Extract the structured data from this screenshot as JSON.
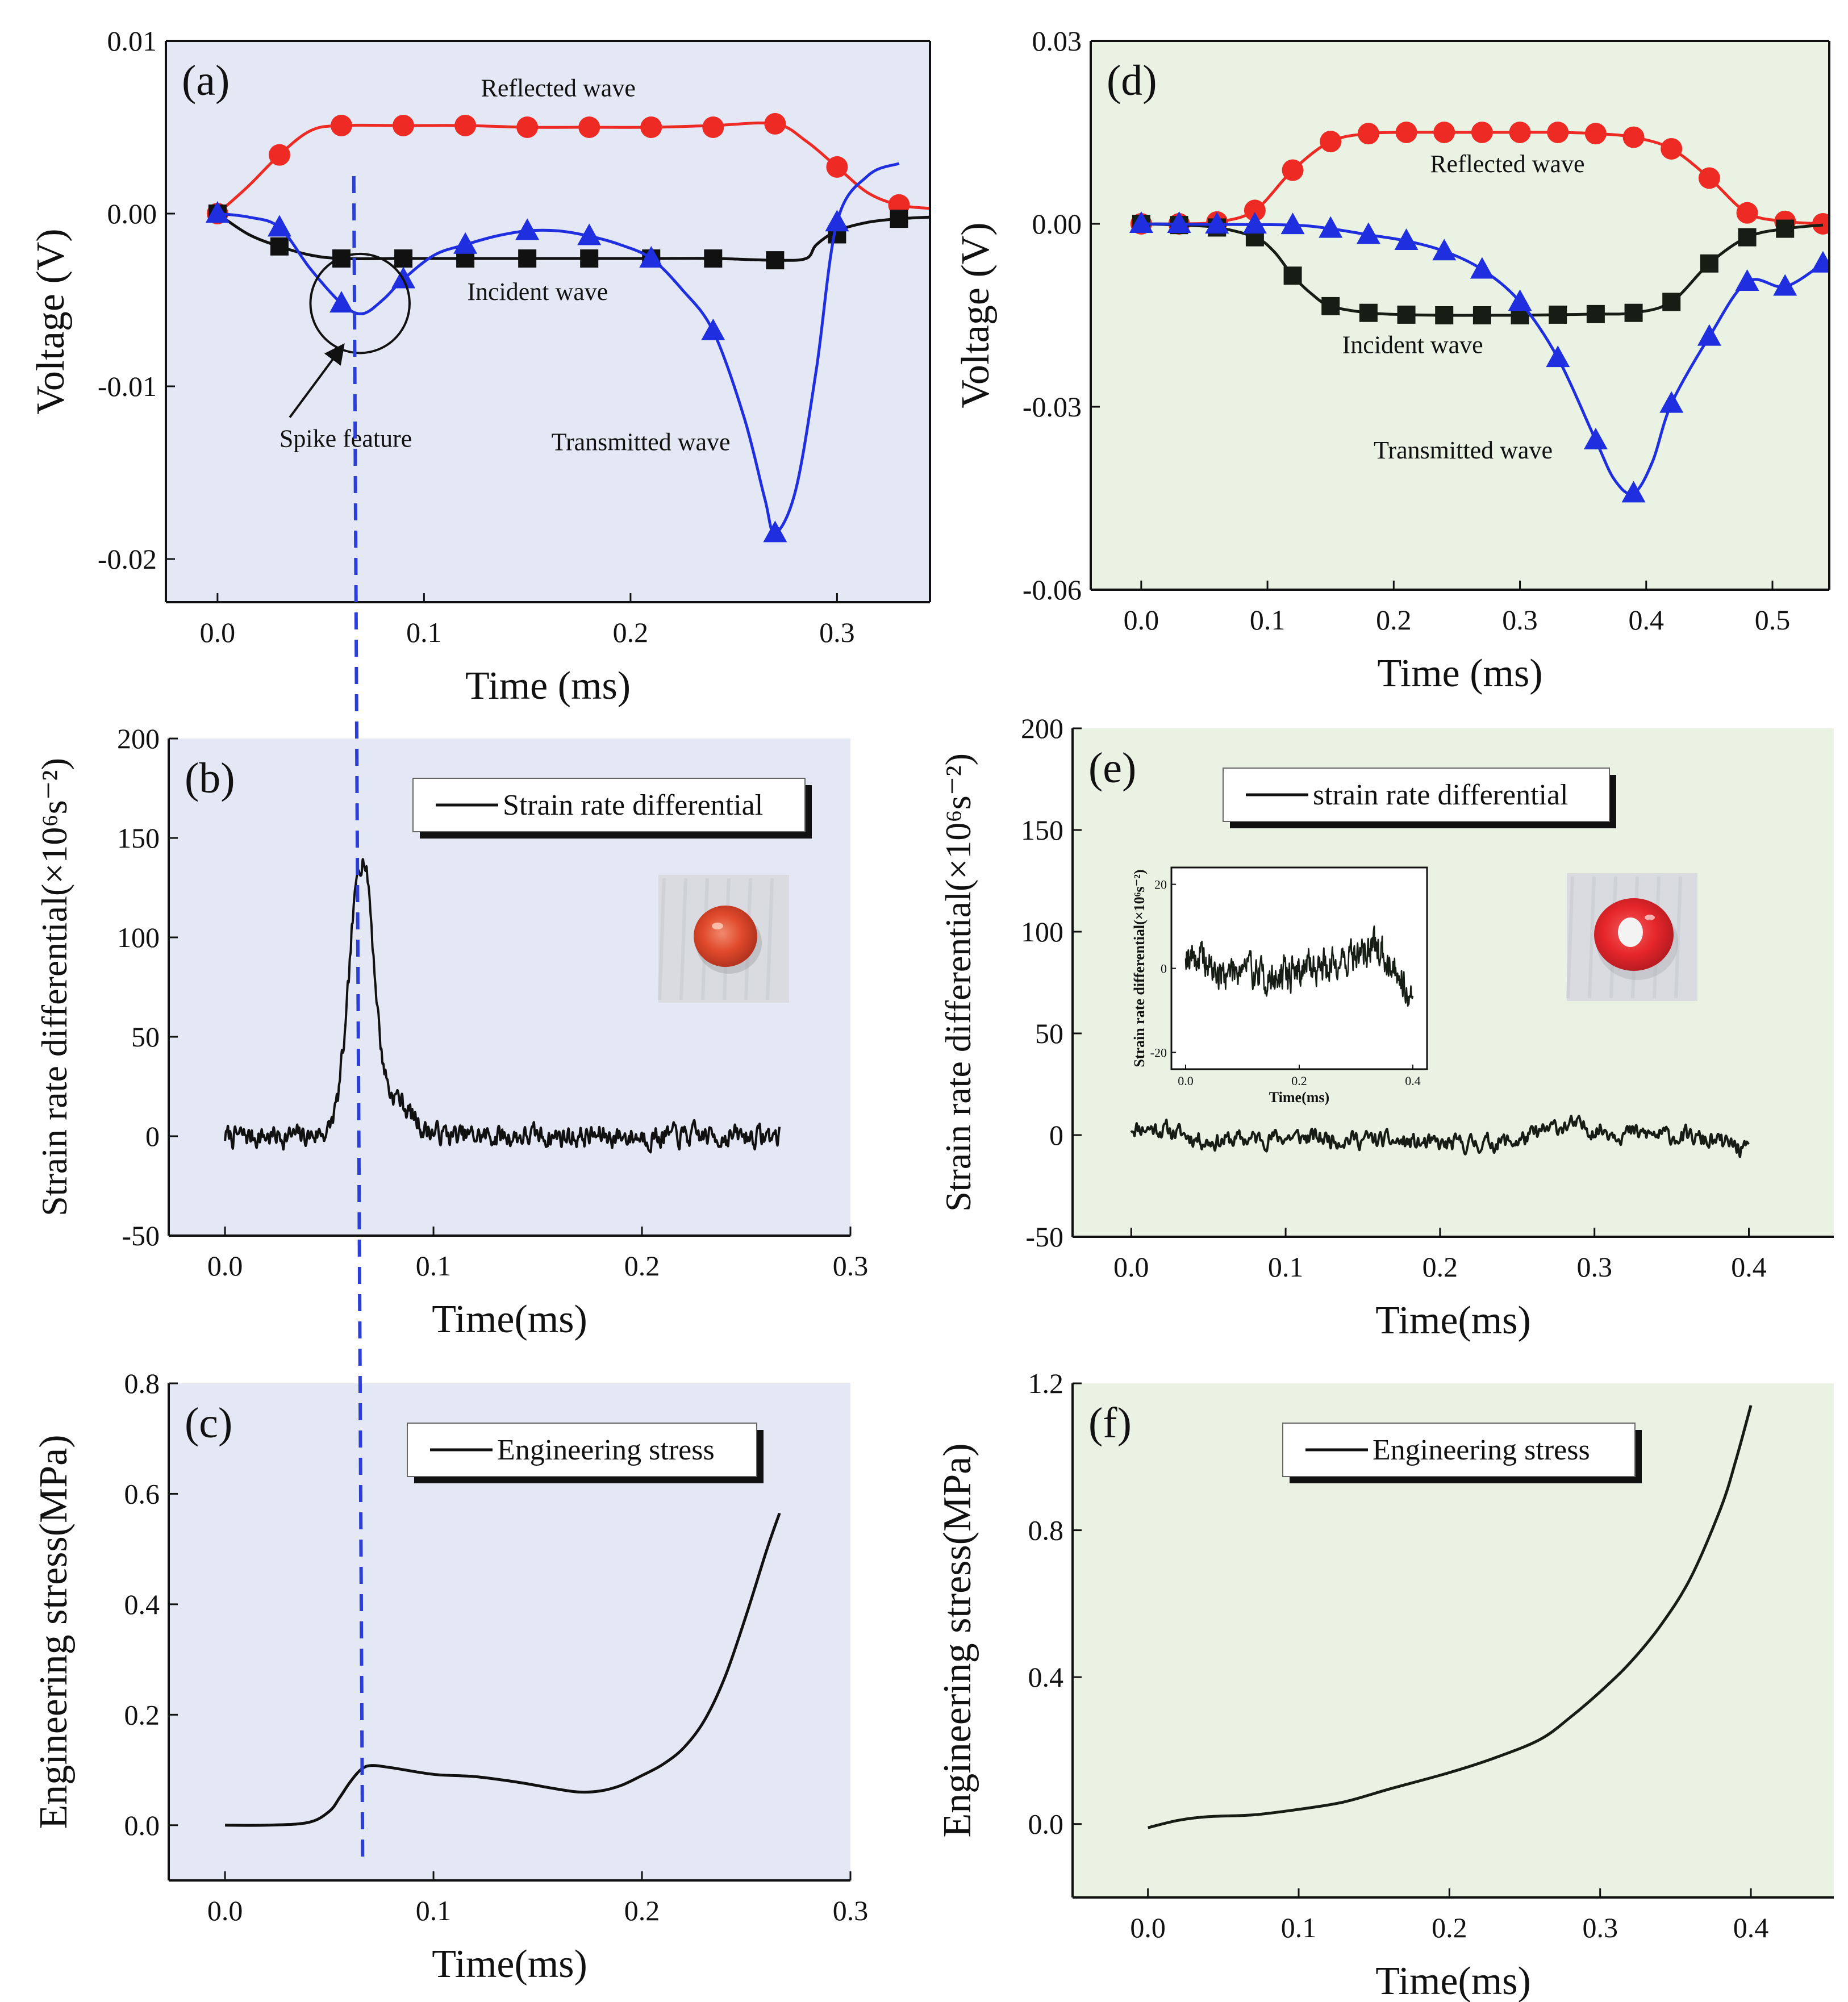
{
  "figure": {
    "guide_color": "#2b3fd6"
  },
  "chart_data": [
    {
      "id": "a",
      "type": "line",
      "panel_label": "(a)",
      "xlabel": "Time (ms)",
      "ylabel": "Voltage (V)",
      "xlim": [
        -0.025,
        0.345
      ],
      "ylim": [
        -0.0225,
        0.01
      ],
      "xticks": [
        0.0,
        0.1,
        0.2,
        0.3
      ],
      "xtick_labels": [
        "0.0",
        "0.1",
        "0.2",
        "0.3"
      ],
      "yticks": [
        0.01,
        0.0,
        -0.01,
        -0.02
      ],
      "ytick_labels": [
        "0.01",
        "0.00",
        "-0.01",
        "-0.02"
      ],
      "bg": "#e4e8f5",
      "guide_x": 0.066,
      "series": [
        {
          "name": "Reflected wave",
          "color": "#ee2a24",
          "marker": "circle",
          "x": [
            0.0,
            0.015,
            0.03,
            0.045,
            0.06,
            0.09,
            0.12,
            0.15,
            0.18,
            0.21,
            0.24,
            0.27,
            0.285,
            0.3,
            0.315,
            0.33,
            0.345
          ],
          "y": [
            0.0,
            0.0016,
            0.0034,
            0.0048,
            0.0051,
            0.0051,
            0.0051,
            0.005,
            0.005,
            0.005,
            0.0051,
            0.0052,
            0.0042,
            0.0027,
            0.0012,
            0.0005,
            0.0003
          ],
          "mx": [
            0.0,
            0.03,
            0.06,
            0.09,
            0.12,
            0.15,
            0.18,
            0.21,
            0.24,
            0.27,
            0.3,
            0.33
          ],
          "my": [
            0.0,
            0.0034,
            0.0051,
            0.0051,
            0.0051,
            0.005,
            0.005,
            0.005,
            0.005,
            0.0052,
            0.0027,
            0.0005
          ]
        },
        {
          "name": "Incident wave",
          "color": "#111111",
          "marker": "square",
          "x": [
            0.0,
            0.015,
            0.03,
            0.045,
            0.06,
            0.09,
            0.12,
            0.15,
            0.18,
            0.21,
            0.24,
            0.27,
            0.285,
            0.29,
            0.3,
            0.315,
            0.33,
            0.345
          ],
          "y": [
            0.0,
            -0.0012,
            -0.0019,
            -0.0024,
            -0.0026,
            -0.0026,
            -0.0026,
            -0.0026,
            -0.0026,
            -0.0026,
            -0.0026,
            -0.0027,
            -0.0026,
            -0.0018,
            -0.001,
            -0.0005,
            -0.0003,
            -0.0002
          ],
          "mx": [
            0.0,
            0.03,
            0.06,
            0.09,
            0.12,
            0.15,
            0.18,
            0.21,
            0.24,
            0.27,
            0.3,
            0.33
          ],
          "my": [
            0.0,
            -0.0019,
            -0.0026,
            -0.0026,
            -0.0026,
            -0.0026,
            -0.0026,
            -0.0026,
            -0.0026,
            -0.0027,
            -0.0012,
            -0.0003
          ]
        },
        {
          "name": "Transmitted wave",
          "color": "#1f2fe0",
          "marker": "triangle",
          "x": [
            0.0,
            0.015,
            0.03,
            0.045,
            0.06,
            0.07,
            0.08,
            0.09,
            0.105,
            0.12,
            0.135,
            0.15,
            0.165,
            0.18,
            0.195,
            0.21,
            0.225,
            0.24,
            0.255,
            0.265,
            0.27,
            0.28,
            0.29,
            0.3,
            0.315,
            0.33
          ],
          "y": [
            0.0,
            -0.0002,
            -0.0008,
            -0.0032,
            -0.0052,
            -0.0058,
            -0.005,
            -0.0038,
            -0.0024,
            -0.0018,
            -0.0013,
            -0.001,
            -0.001,
            -0.0013,
            -0.0018,
            -0.0026,
            -0.0044,
            -0.0068,
            -0.0118,
            -0.0165,
            -0.0185,
            -0.016,
            -0.009,
            -0.0005,
            0.0022,
            0.0029
          ],
          "mx": [
            0.0,
            0.03,
            0.06,
            0.09,
            0.12,
            0.15,
            0.18,
            0.21,
            0.24,
            0.27,
            0.3
          ],
          "my": [
            0.0,
            -0.0008,
            -0.0052,
            -0.0038,
            -0.0018,
            -0.001,
            -0.0013,
            -0.0026,
            -0.0068,
            -0.0185,
            -0.0005
          ]
        }
      ],
      "annotations": [
        {
          "text": "Reflected wave",
          "x": 0.165,
          "y": 0.0068
        },
        {
          "text": "Incident wave",
          "x": 0.155,
          "y": -0.005
        },
        {
          "text": "Transmitted wave",
          "x": 0.205,
          "y": -0.0137
        },
        {
          "text": "Spike feature",
          "x": 0.03,
          "y": -0.0135
        }
      ],
      "spike": {
        "cx": 0.069,
        "cy": -0.0052,
        "r": 0.024,
        "arrow_from": [
          0.035,
          -0.0118
        ],
        "arrow_to": [
          0.061,
          -0.0076
        ]
      }
    },
    {
      "id": "d",
      "type": "line",
      "panel_label": "(d)",
      "xlabel": "Time (ms)",
      "ylabel": "Voltage (V)",
      "xlim": [
        -0.04,
        0.545
      ],
      "ylim": [
        -0.06,
        0.03
      ],
      "xticks": [
        0.0,
        0.1,
        0.2,
        0.3,
        0.4,
        0.5
      ],
      "xtick_labels": [
        "0.0",
        "0.1",
        "0.2",
        "0.3",
        "0.4",
        "0.5"
      ],
      "yticks": [
        0.03,
        0.0,
        -0.03,
        -0.06
      ],
      "ytick_labels": [
        "0.03",
        "0.00",
        "-0.03",
        "-0.06"
      ],
      "bg": "#e9f2e3",
      "series": [
        {
          "name": "Reflected wave",
          "color": "#ee2a24",
          "marker": "circle",
          "x": [
            0.0,
            0.03,
            0.06,
            0.09,
            0.12,
            0.15,
            0.18,
            0.21,
            0.24,
            0.27,
            0.3,
            0.33,
            0.36,
            0.39,
            0.42,
            0.45,
            0.48,
            0.51,
            0.54
          ],
          "y": [
            0.0,
            0.0,
            0.0003,
            0.0022,
            0.0088,
            0.0135,
            0.0148,
            0.015,
            0.015,
            0.015,
            0.015,
            0.015,
            0.0148,
            0.0142,
            0.0123,
            0.0075,
            0.0018,
            0.0004,
            0.0
          ],
          "mx": [
            0.0,
            0.03,
            0.06,
            0.09,
            0.12,
            0.15,
            0.18,
            0.21,
            0.24,
            0.27,
            0.3,
            0.33,
            0.36,
            0.39,
            0.42,
            0.45,
            0.48,
            0.51,
            0.54
          ],
          "my": [
            0.0,
            0.0,
            0.0003,
            0.0022,
            0.0088,
            0.0135,
            0.0148,
            0.015,
            0.015,
            0.015,
            0.015,
            0.015,
            0.0148,
            0.0142,
            0.0123,
            0.0075,
            0.0018,
            0.0004,
            0.0
          ]
        },
        {
          "name": "Incident wave",
          "color": "#151d15",
          "marker": "square",
          "x": [
            0.0,
            0.03,
            0.06,
            0.09,
            0.105,
            0.12,
            0.135,
            0.15,
            0.18,
            0.21,
            0.24,
            0.27,
            0.3,
            0.33,
            0.36,
            0.39,
            0.42,
            0.45,
            0.48,
            0.51,
            0.54
          ],
          "y": [
            0.0,
            -0.0002,
            -0.0006,
            -0.0022,
            -0.0045,
            -0.0085,
            -0.0115,
            -0.0135,
            -0.0146,
            -0.0149,
            -0.015,
            -0.015,
            -0.015,
            -0.0149,
            -0.0148,
            -0.0146,
            -0.0128,
            -0.0065,
            -0.0022,
            -0.0008,
            -0.0002
          ],
          "mx": [
            0.0,
            0.03,
            0.06,
            0.09,
            0.12,
            0.15,
            0.18,
            0.21,
            0.24,
            0.27,
            0.3,
            0.33,
            0.36,
            0.39,
            0.42,
            0.45,
            0.48,
            0.51
          ],
          "my": [
            0.0,
            -0.0002,
            -0.0006,
            -0.0022,
            -0.0085,
            -0.0135,
            -0.0146,
            -0.0149,
            -0.015,
            -0.015,
            -0.015,
            -0.0149,
            -0.0148,
            -0.0146,
            -0.0128,
            -0.0065,
            -0.0022,
            -0.0008
          ]
        },
        {
          "name": "Transmitted wave",
          "color": "#1f2fe0",
          "marker": "triangle",
          "x": [
            0.0,
            0.06,
            0.12,
            0.15,
            0.18,
            0.21,
            0.24,
            0.27,
            0.3,
            0.33,
            0.36,
            0.375,
            0.39,
            0.405,
            0.42,
            0.45,
            0.48,
            0.51,
            0.54
          ],
          "y": [
            0.0,
            -0.0001,
            -0.0002,
            -0.0008,
            -0.0018,
            -0.0028,
            -0.0045,
            -0.0075,
            -0.0128,
            -0.022,
            -0.0355,
            -0.042,
            -0.0442,
            -0.039,
            -0.0295,
            -0.0185,
            -0.0095,
            -0.0103,
            -0.0065
          ],
          "mx": [
            0.0,
            0.03,
            0.06,
            0.09,
            0.12,
            0.15,
            0.18,
            0.21,
            0.24,
            0.27,
            0.3,
            0.33,
            0.36,
            0.39,
            0.42,
            0.45,
            0.48,
            0.51,
            0.54
          ],
          "my": [
            0.0,
            0.0,
            -0.0001,
            -0.0001,
            -0.0002,
            -0.0008,
            -0.0018,
            -0.0028,
            -0.0045,
            -0.0075,
            -0.0128,
            -0.022,
            -0.0355,
            -0.0442,
            -0.0295,
            -0.0185,
            -0.0095,
            -0.0103,
            -0.0065
          ]
        }
      ],
      "annotations": [
        {
          "text": "Reflected wave",
          "x": 0.29,
          "y": 0.0085
        },
        {
          "text": "Incident wave",
          "x": 0.215,
          "y": -0.0212
        },
        {
          "text": "Transmitted wave",
          "x": 0.255,
          "y": -0.0385
        }
      ]
    },
    {
      "id": "b",
      "type": "line",
      "panel_label": "(b)",
      "xlabel": "Time(ms)",
      "ylabel": "Strain rate differential(×10⁶s⁻²)",
      "xlim": [
        -0.027,
        0.3
      ],
      "ylim": [
        -50,
        200
      ],
      "xticks": [
        0.0,
        0.1,
        0.2,
        0.3
      ],
      "xtick_labels": [
        "0.0",
        "0.1",
        "0.2",
        "0.3"
      ],
      "yticks": [
        200,
        150,
        100,
        50,
        0,
        -50
      ],
      "ytick_labels": [
        "200",
        "150",
        "100",
        "50",
        "0",
        "-50"
      ],
      "bg": "#e4e8f5",
      "guide_x": 0.066,
      "legend": "Strain rate differential",
      "series": [
        {
          "name": "Strain rate differential",
          "color": "#111111",
          "noise": 4.5,
          "seed": 7,
          "x": [
            0.0,
            0.02,
            0.04,
            0.05,
            0.054,
            0.058,
            0.061,
            0.064,
            0.0665,
            0.069,
            0.072,
            0.075,
            0.079,
            0.083,
            0.087,
            0.091,
            0.095,
            0.1,
            0.106,
            0.112,
            0.12,
            0.13,
            0.15,
            0.2,
            0.25,
            0.266
          ],
          "y": [
            0.0,
            0.0,
            0.0,
            3.0,
            18.0,
            55.0,
            105.0,
            136.0,
            142.0,
            125.0,
            80.0,
            42.0,
            22.0,
            20.0,
            14.0,
            9.0,
            4.0,
            2.0,
            1.0,
            0.0,
            0.0,
            0.0,
            0.0,
            0.0,
            0.0,
            0.0
          ]
        }
      ],
      "photo": {
        "kind": "solid"
      }
    },
    {
      "id": "e",
      "type": "line",
      "panel_label": "(e)",
      "xlabel": "Time(ms)",
      "ylabel": "Strain rate differential(×10⁶s⁻²)",
      "xlim": [
        -0.038,
        0.455
      ],
      "ylim": [
        -50,
        200
      ],
      "xticks": [
        0.0,
        0.1,
        0.2,
        0.3,
        0.4
      ],
      "xtick_labels": [
        "0.0",
        "0.1",
        "0.2",
        "0.3",
        "0.4"
      ],
      "yticks": [
        200,
        150,
        100,
        50,
        0,
        -50
      ],
      "ytick_labels": [
        "200",
        "150",
        "100",
        "50",
        "0",
        "-50"
      ],
      "bg": "#e9f2e3",
      "legend": "strain rate differential",
      "series": [
        {
          "name": "strain rate differential",
          "color": "#151d15",
          "noise": 3.5,
          "seed": 11,
          "x": [
            0.0,
            0.02,
            0.05,
            0.1,
            0.15,
            0.2,
            0.25,
            0.28,
            0.32,
            0.36,
            0.39,
            0.4
          ],
          "y": [
            4.0,
            3.0,
            -3.0,
            -1.0,
            -2.0,
            -5.0,
            -3.0,
            5.0,
            1.0,
            -1.0,
            -5.0,
            -9.0
          ]
        }
      ],
      "inset": {
        "xlabel": "Time(ms)",
        "ylabel": "Strain rate differential(×10⁶s⁻²)",
        "xlim": [
          -0.025,
          0.425
        ],
        "ylim": [
          -24,
          24
        ],
        "xticks": [
          0.0,
          0.2,
          0.4
        ],
        "xtick_labels": [
          "0.0",
          "0.2",
          "0.4"
        ],
        "yticks": [
          20,
          0,
          -20
        ],
        "ytick_labels": [
          "20",
          "0",
          "-20"
        ],
        "series": {
          "noise": 3.2,
          "seed": 19,
          "x": [
            0.0,
            0.03,
            0.06,
            0.1,
            0.15,
            0.2,
            0.25,
            0.3,
            0.33,
            0.36,
            0.39,
            0.4
          ],
          "y": [
            4.0,
            2.0,
            -2.0,
            1.0,
            -3.0,
            0.0,
            1.0,
            3.0,
            5.0,
            2.0,
            -4.0,
            -9.0
          ]
        }
      },
      "photo": {
        "kind": "ring"
      }
    },
    {
      "id": "c",
      "type": "line",
      "panel_label": "(c)",
      "xlabel": "Time(ms)",
      "ylabel": "Engineering stress(MPa)",
      "xlim": [
        -0.027,
        0.3
      ],
      "ylim": [
        -0.1,
        0.8
      ],
      "xticks": [
        0.0,
        0.1,
        0.2,
        0.3
      ],
      "xtick_labels": [
        "0.0",
        "0.1",
        "0.2",
        "0.3"
      ],
      "yticks": [
        0.8,
        0.6,
        0.4,
        0.2,
        0.0
      ],
      "ytick_labels": [
        "0.8",
        "0.6",
        "0.4",
        "0.2",
        "0.0"
      ],
      "bg": "#e4e8f5",
      "guide_x": 0.066,
      "legend": "Engineering stress",
      "series": [
        {
          "name": "Engineering stress",
          "color": "#111111",
          "x": [
            0.0,
            0.02,
            0.04,
            0.05,
            0.055,
            0.06,
            0.065,
            0.07,
            0.08,
            0.1,
            0.12,
            0.14,
            0.16,
            0.17,
            0.18,
            0.19,
            0.2,
            0.21,
            0.22,
            0.23,
            0.24,
            0.25,
            0.26,
            0.266
          ],
          "y": [
            0.0,
            0.0,
            0.005,
            0.025,
            0.05,
            0.078,
            0.1,
            0.108,
            0.104,
            0.092,
            0.088,
            0.078,
            0.065,
            0.06,
            0.062,
            0.072,
            0.09,
            0.11,
            0.14,
            0.19,
            0.27,
            0.38,
            0.5,
            0.565
          ]
        }
      ]
    },
    {
      "id": "f",
      "type": "line",
      "panel_label": "(f)",
      "xlabel": "Time(ms)",
      "ylabel": "Engineering stress(MPa)",
      "xlim": [
        -0.05,
        0.455
      ],
      "ylim": [
        -0.2,
        1.2
      ],
      "xticks": [
        0.0,
        0.1,
        0.2,
        0.3,
        0.4
      ],
      "xtick_labels": [
        "0.0",
        "0.1",
        "0.2",
        "0.3",
        "0.4"
      ],
      "yticks": [
        1.2,
        0.8,
        0.4,
        0.0
      ],
      "ytick_labels": [
        "1.2",
        "0.8",
        "0.4",
        "0.0"
      ],
      "bg": "#e9f2e3",
      "legend": "Engineering stress",
      "series": [
        {
          "name": "Engineering stress",
          "color": "#151d15",
          "x": [
            0.0,
            0.02,
            0.04,
            0.07,
            0.1,
            0.13,
            0.16,
            0.2,
            0.23,
            0.26,
            0.28,
            0.3,
            0.32,
            0.34,
            0.36,
            0.38,
            0.39,
            0.4
          ],
          "y": [
            -0.01,
            0.01,
            0.02,
            0.025,
            0.04,
            0.06,
            0.095,
            0.14,
            0.18,
            0.23,
            0.29,
            0.36,
            0.44,
            0.54,
            0.67,
            0.86,
            0.99,
            1.14
          ]
        }
      ]
    }
  ]
}
